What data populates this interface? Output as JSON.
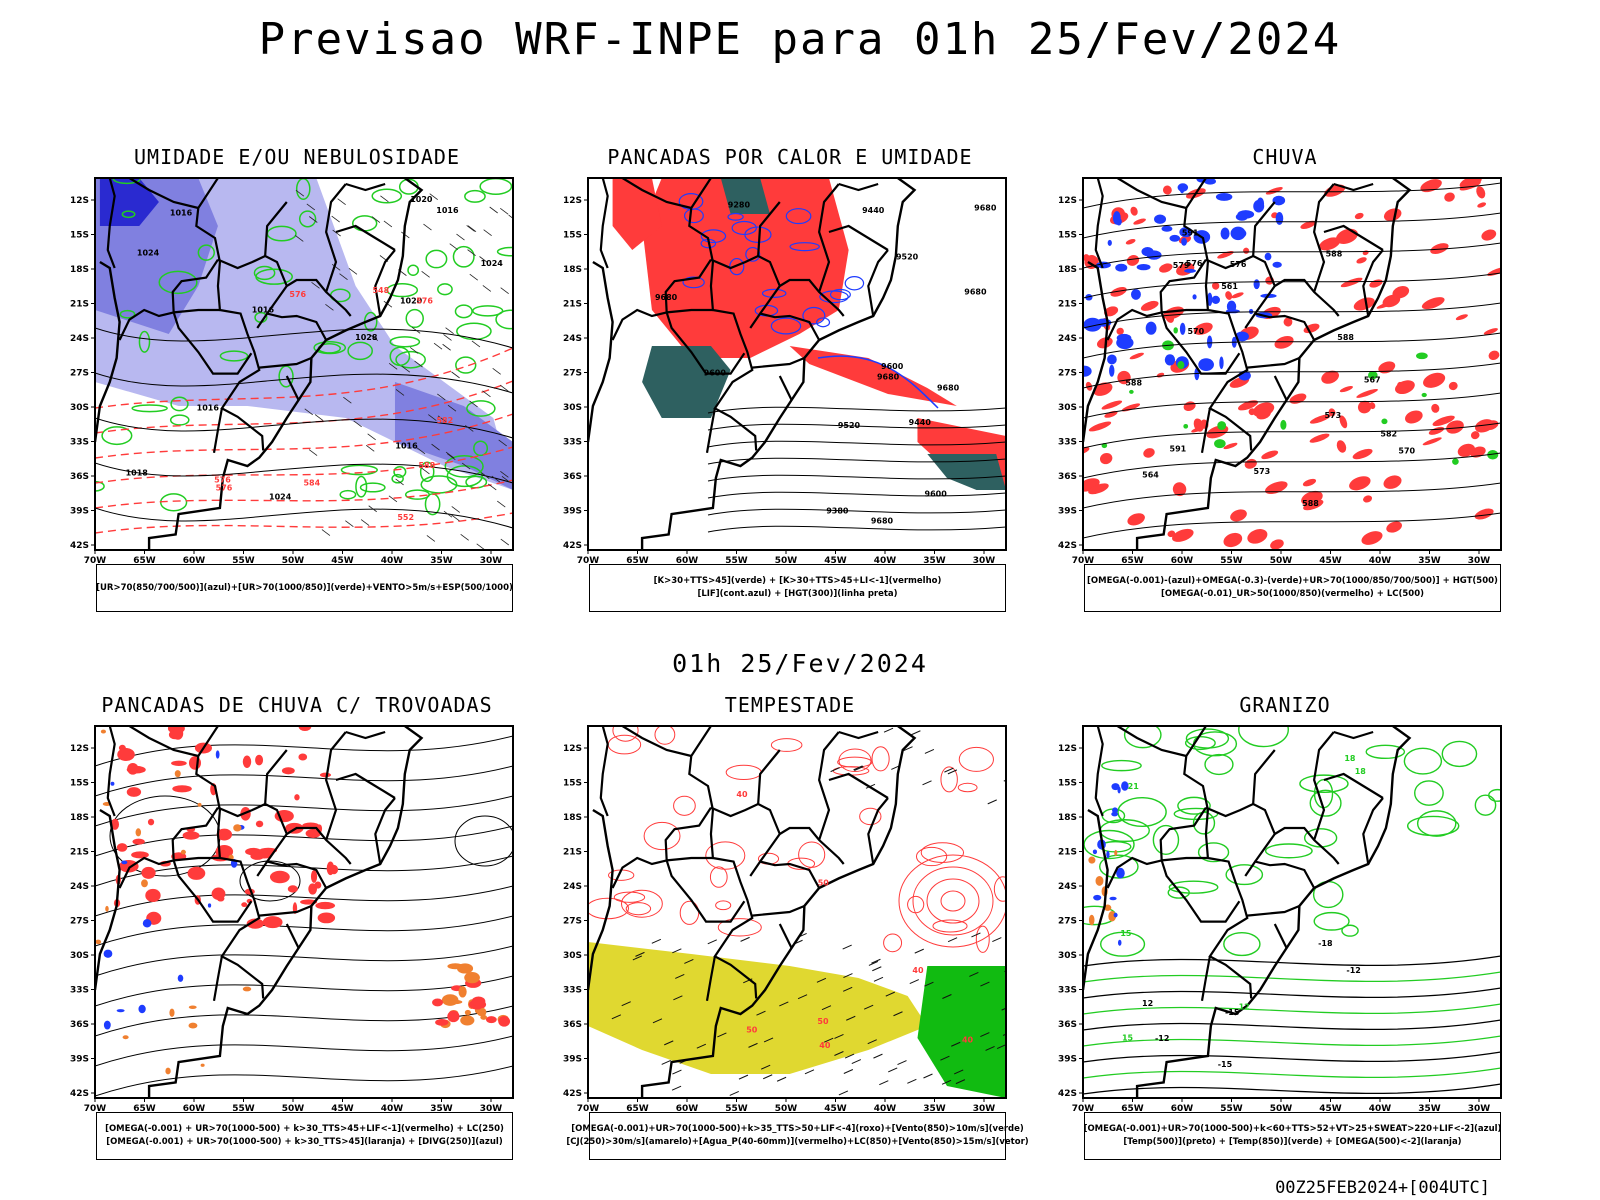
{
  "main_title": "Previsao WRF-INPE  para 01h 25/Fev/2024",
  "mid_title": "01h 25/Fev/2024",
  "footer": "00Z25FEB2024+[004UTC]",
  "lat_labels": [
    "12S",
    "15S",
    "18S",
    "21S",
    "24S",
    "27S",
    "30S",
    "33S",
    "36S",
    "39S",
    "42S"
  ],
  "lon_labels": [
    "70W",
    "65W",
    "60W",
    "55W",
    "50W",
    "45W",
    "40W",
    "35W",
    "30W"
  ],
  "panels": [
    {
      "title": "UMIDADE E/OU NEBULOSIDADE",
      "legend": [
        "[UR>70(850/700/500)](azul)+[UR>70(1000/850)](verde)+VENTO>5m/s+ESP(500/1000)"
      ],
      "labels": [
        "1016",
        "1016",
        "1016",
        "1018",
        "1016",
        "1020",
        "1024",
        "1020",
        "1024",
        "1028",
        "1024",
        "1016",
        "576",
        "576",
        "576",
        "576",
        "582",
        "584",
        "588",
        "552",
        "548"
      ]
    },
    {
      "title": "PANCADAS POR CALOR E UMIDADE",
      "legend": [
        "[K>30+TTS>45](verde) + [K>30+TTS>45+LI<-1](vermelho)",
        "[LIF](cont.azul) + [HGT(300)](linha preta)"
      ],
      "labels": [
        "9680",
        "9680",
        "9680",
        "9680",
        "9600",
        "9680",
        "9600",
        "9520",
        "9440",
        "9380",
        "9280",
        "9600",
        "9520",
        "9440",
        "9680"
      ]
    },
    {
      "title": "CHUVA",
      "legend": [
        "[OMEGA(-0.001)-(azul)+OMEGA(-0.3)-(verde)+UR>70(1000/850/700/500)] + HGT(500)",
        "[OMEGA(-0.01)_UR>50(1000/850)(vermelho) + LC(500)"
      ],
      "labels": [
        "588",
        "588",
        "588",
        "591",
        "591",
        "588",
        "582",
        "579",
        "576",
        "573",
        "570",
        "567",
        "564",
        "561",
        "576",
        "573",
        "570"
      ]
    },
    {
      "title": "PANCADAS DE CHUVA C/ TROVOADAS",
      "legend": [
        "[OMEGA(-0.001) + UR>70(1000-500) + k>30_TTS>45+LIF<-1](vermelho) + LC(250)",
        "[OMEGA(-0.001) + UR>70(1000-500) + k>30_TTS>45](laranja) + [DIVG(250)](azul)"
      ],
      "labels": []
    },
    {
      "title": "TEMPESTADE",
      "legend": [
        "[OMEGA(-0.001)+UR>70(1000-500)+k>35_TTS>50+LIF<-4](roxo)+[Vento(850)>10m/s](verde)",
        "[CJ(250)>30m/s](amarelo)+[Agua_P(40-60mm)](vermelho)+LC(850)+[Vento(850)>15m/s](vetor)"
      ],
      "labels": [
        "40",
        "50",
        "40",
        "50",
        "40",
        "40",
        "50"
      ]
    },
    {
      "title": "GRANIZO",
      "legend": [
        "[OMEGA(-0.001)+UR>70(1000-500)+k<60+TTS>52+VT>25+SWEAT>220+LIF<-2](azul)",
        "[Temp(500)](preto) + [Temp(850)](verde) + [OMEGA(500)<-2](laranja)"
      ],
      "labels": [
        "15",
        "18",
        "21",
        "18",
        "15",
        "12",
        "-12",
        "-15",
        "-18",
        "-12",
        "-15",
        "12"
      ]
    }
  ],
  "colors": {
    "blue": "#1e3cff",
    "light_blue": "#b8b8f0",
    "purple_blue": "#8080e0",
    "green": "#22cc22",
    "red": "#ff3b3b",
    "dark_teal": "#2e6060",
    "orange": "#f08030",
    "yellow": "#e0d830",
    "dark_green": "#11bb11"
  }
}
